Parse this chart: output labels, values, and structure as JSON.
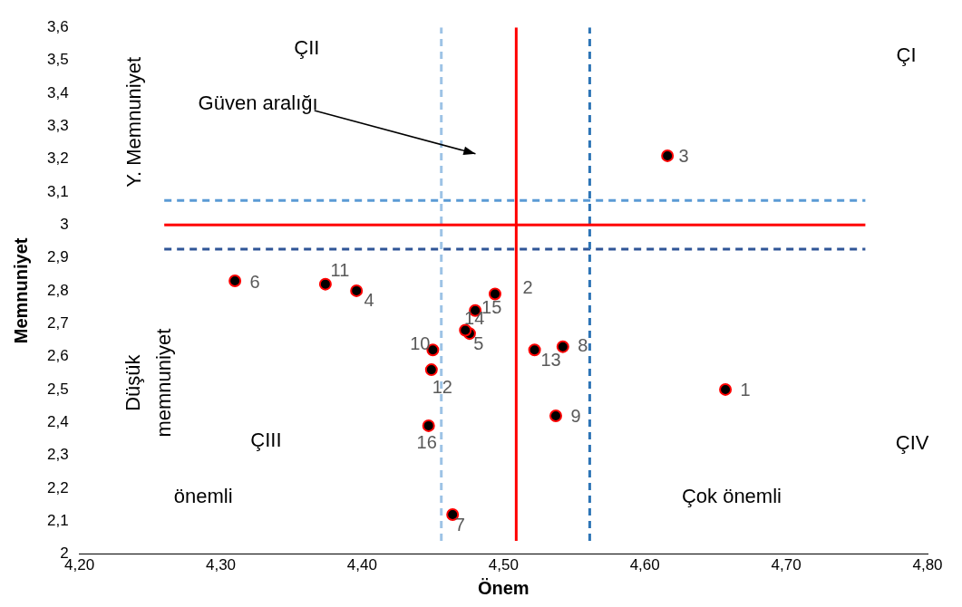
{
  "chart_data": {
    "type": "scatter",
    "xlabel": "Önem",
    "ylabel": "Memnuniyet",
    "xlim": [
      4.2,
      4.8
    ],
    "xticks": [
      {
        "value": 4.2,
        "label": "4,20"
      },
      {
        "value": 4.3,
        "label": "4,30"
      },
      {
        "value": 4.4,
        "label": "4,40"
      },
      {
        "value": 4.5,
        "label": "4,50"
      },
      {
        "value": 4.6,
        "label": "4,60"
      },
      {
        "value": 4.7,
        "label": "4,70"
      },
      {
        "value": 4.8,
        "label": "4,80"
      }
    ],
    "ylim": [
      2,
      3.6
    ],
    "yticks": [
      2,
      {
        "value": 2.1,
        "label": "2,1"
      },
      {
        "value": 2.2,
        "label": "2,2"
      },
      {
        "value": 2.3,
        "label": "2,3"
      },
      {
        "value": 2.4,
        "label": "2,4"
      },
      {
        "value": 2.5,
        "label": "2,5"
      },
      {
        "value": 2.6,
        "label": "2,6"
      },
      {
        "value": 2.7,
        "label": "2,7"
      },
      {
        "value": 2.8,
        "label": "2,8"
      },
      {
        "value": 2.9,
        "label": "2,9"
      },
      3,
      {
        "value": 3.1,
        "label": "3,1"
      },
      {
        "value": 3.2,
        "label": "3,2"
      },
      {
        "value": 3.3,
        "label": "3,3"
      },
      {
        "value": 3.4,
        "label": "3,4"
      },
      {
        "value": 3.5,
        "label": "3,5"
      },
      {
        "value": 3.6,
        "label": "3,6"
      }
    ],
    "series": [
      {
        "marker": "circle",
        "color": "#ff0000",
        "x": [
          4.657,
          4.494,
          4.616,
          4.396,
          4.476,
          4.31,
          4.464,
          4.542,
          4.537,
          4.45,
          4.374,
          4.449,
          4.522,
          4.473,
          4.48,
          4.447
        ],
        "values": [
          2.5,
          2.79,
          3.21,
          2.8,
          2.67,
          2.83,
          2.12,
          2.63,
          2.42,
          2.62,
          2.82,
          2.56,
          2.62,
          2.68,
          2.74,
          2.39
        ]
      },
      {
        "type": "line",
        "marker": "none",
        "color": "#ff0000",
        "line_style": "solid",
        "x": [
          4.509,
          4.509
        ],
        "values": [
          2.04,
          3.6
        ]
      },
      {
        "type": "line",
        "marker": "none",
        "color": "#ff0000",
        "line_style": "solid",
        "x": [
          4.26,
          4.756
        ],
        "values": [
          3,
          3
        ]
      },
      {
        "type": "line",
        "marker": "none",
        "color": "#9dc3e6",
        "line_style": "dashed",
        "x": [
          4.456,
          4.456
        ],
        "values": [
          2.04,
          3.6
        ]
      },
      {
        "type": "line",
        "marker": "none",
        "color": "#2e75b6",
        "line_style": "dashed",
        "x": [
          4.561,
          4.561
        ],
        "values": [
          2.04,
          3.6
        ]
      },
      {
        "type": "line",
        "marker": "none",
        "color": "#5b9bd5",
        "line_style": "dashed",
        "x": [
          4.26,
          4.756
        ],
        "values": [
          3.074,
          3.074
        ]
      },
      {
        "type": "line",
        "marker": "none",
        "color": "#2f5597",
        "line_style": "dashed",
        "x": [
          4.26,
          4.756
        ],
        "values": [
          2.926,
          2.926
        ]
      }
    ],
    "annotations": [
      {
        "text": "1",
        "x": 4.657,
        "y": 2.5
      },
      {
        "text": "2",
        "x": 4.494,
        "y": 2.79
      },
      {
        "text": "3",
        "x": 4.616,
        "y": 3.21
      },
      {
        "text": "4",
        "x": 4.396,
        "y": 2.8
      },
      {
        "text": "5",
        "x": 4.476,
        "y": 2.67
      },
      {
        "text": "6",
        "x": 4.31,
        "y": 2.83
      },
      {
        "text": "7",
        "x": 4.464,
        "y": 2.12
      },
      {
        "text": "8",
        "x": 4.542,
        "y": 2.63
      },
      {
        "text": "9",
        "x": 4.537,
        "y": 2.42
      },
      {
        "text": "10",
        "x": 4.45,
        "y": 2.62
      },
      {
        "text": "11",
        "x": 4.374,
        "y": 2.82
      },
      {
        "text": "12",
        "x": 4.449,
        "y": 2.56
      },
      {
        "text": "13",
        "x": 4.522,
        "y": 2.62
      },
      {
        "text": "14",
        "x": 4.473,
        "y": 2.68
      },
      {
        "text": "15",
        "x": 4.48,
        "y": 2.74
      },
      {
        "text": "16",
        "x": 4.447,
        "y": 2.39
      },
      "ÇII",
      "ÇI",
      "Güven aralığı",
      "Y. Memnuniyet",
      "Düşük memnuniyet",
      "ÇIII",
      "ÇIV",
      "önemli",
      "Çok önemli"
    ]
  }
}
